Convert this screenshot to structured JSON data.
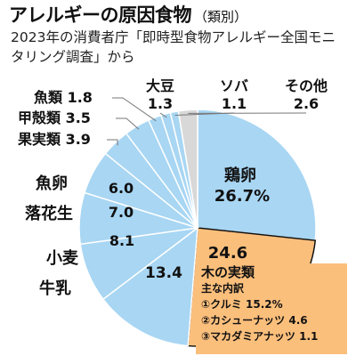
{
  "title": {
    "main": "アレルギーの原因食物",
    "note": "（類別）",
    "subtitle": "2023年の消費者庁「即時型食物アレルギー全国モニタリング調査」から"
  },
  "colors": {
    "slice_blue": "#a8d6f3",
    "slice_orange": "#fbbf7c",
    "slice_gray": "#d8d8d8",
    "edge": "#ffffff",
    "highlight_edge": "#111111",
    "leader": "#777777"
  },
  "chart_data": {
    "type": "pie",
    "unit": "%",
    "slices": [
      {
        "label": "鶏卵",
        "value": 26.7,
        "value_text": "26.7%",
        "color": "#a8d6f3"
      },
      {
        "label": "木の実類",
        "value": 24.6,
        "value_text": "24.6",
        "color": "#fbbf7c"
      },
      {
        "label": "牛乳",
        "value": 13.4,
        "value_text": "13.4",
        "color": "#a8d6f3"
      },
      {
        "label": "小麦",
        "value": 8.1,
        "value_text": "8.1",
        "color": "#a8d6f3"
      },
      {
        "label": "落花生",
        "value": 7.0,
        "value_text": "7.0",
        "color": "#a8d6f3"
      },
      {
        "label": "魚卵",
        "value": 6.0,
        "value_text": "6.0",
        "color": "#a8d6f3"
      },
      {
        "label": "果実類",
        "value": 3.9,
        "value_text": "3.9",
        "color": "#a8d6f3"
      },
      {
        "label": "甲殻類",
        "value": 3.5,
        "value_text": "3.5",
        "color": "#a8d6f3"
      },
      {
        "label": "魚類",
        "value": 1.8,
        "value_text": "1.8",
        "color": "#a8d6f3"
      },
      {
        "label": "大豆",
        "value": 1.3,
        "value_text": "1.3",
        "color": "#a8d6f3"
      },
      {
        "label": "ソバ",
        "value": 1.1,
        "value_text": "1.1",
        "color": "#a8d6f3"
      },
      {
        "label": "その他",
        "value": 2.6,
        "value_text": "2.6",
        "color": "#d8d8d8"
      }
    ],
    "breakdown": {
      "title": "木の実類",
      "subtitle": "主な内訳",
      "items": [
        {
          "marker": "①",
          "label": "クルミ",
          "value": 15.2,
          "value_text": "15.2%"
        },
        {
          "marker": "②",
          "label": "カシューナッツ",
          "value": 4.6,
          "value_text": "4.6"
        },
        {
          "marker": "③",
          "label": "マカダミアナッツ",
          "value": 1.1,
          "value_text": "1.1"
        }
      ]
    }
  }
}
